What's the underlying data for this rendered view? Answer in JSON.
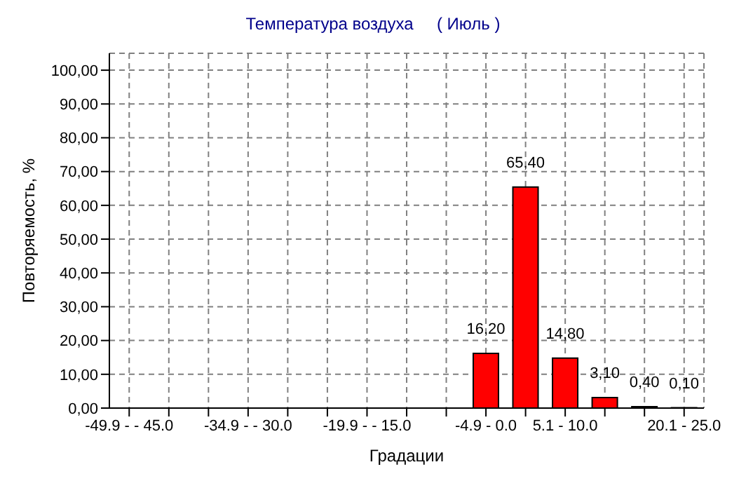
{
  "chart_data": {
    "type": "bar",
    "title": "Температура воздуха     ( Июль )",
    "xlabel": "Градации",
    "ylabel": "Повторяемость, %",
    "categories": [
      "-49.9 -  - 45.0",
      null,
      null,
      "-34.9 -  - 30.0",
      null,
      null,
      "-19.9 -  - 15.0",
      null,
      null,
      "-4.9 - 0.0",
      null,
      "5.1 - 10.0",
      null,
      null,
      "20.1 - 25.0"
    ],
    "values": [
      0,
      0,
      0,
      0,
      0,
      0,
      0,
      0,
      0,
      16.2,
      65.4,
      14.8,
      3.1,
      0.4,
      0.1
    ],
    "value_labels": [
      null,
      null,
      null,
      null,
      null,
      null,
      null,
      null,
      null,
      "16,20",
      "65,40",
      "14,80",
      "3,10",
      "0,40",
      "0,10"
    ],
    "color": "#ff0000",
    "ylim": [
      0,
      105
    ],
    "yticks": [
      {
        "value": 0,
        "label": "0,00"
      },
      {
        "value": 10,
        "label": "10,00"
      },
      {
        "value": 20,
        "label": "20,00"
      },
      {
        "value": 30,
        "label": "30,00"
      },
      {
        "value": 40,
        "label": "40,00"
      },
      {
        "value": 50,
        "label": "50,00"
      },
      {
        "value": 60,
        "label": "60,00"
      },
      {
        "value": 70,
        "label": "70,00"
      },
      {
        "value": 80,
        "label": "80,00"
      },
      {
        "value": 90,
        "label": "90,00"
      },
      {
        "value": 100,
        "label": "100,00"
      }
    ],
    "grid": true
  }
}
